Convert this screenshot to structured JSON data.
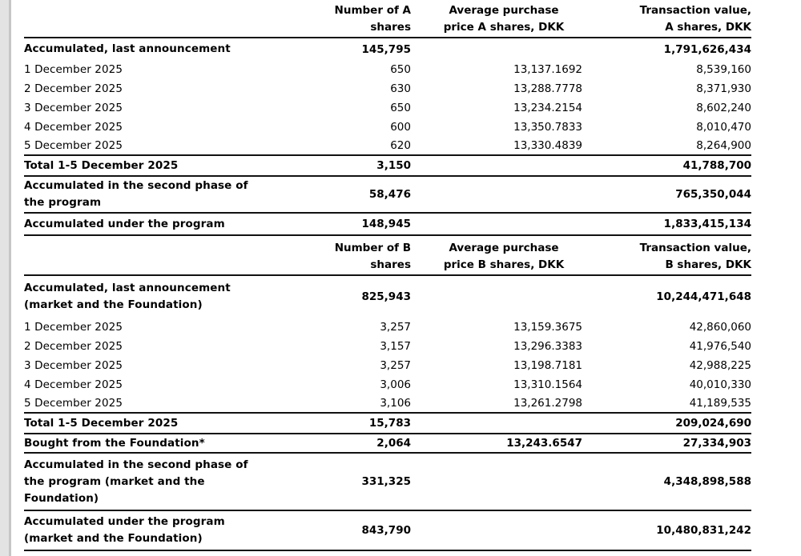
{
  "page": {
    "background": "#ffffff",
    "text_color": "#000000",
    "rule_color": "#111111",
    "margin_strip_color": "#e3e3e3",
    "margin_strip_edge_color": "#c6c6c6"
  },
  "table_a": {
    "headers": {
      "shares": "Number of A\nshares",
      "price": "Average purchase\nprice A shares, DKK",
      "value": "Transaction value,\nA shares, DKK"
    },
    "rows": [
      {
        "label": "Accumulated, last announcement",
        "shares": "145,795",
        "price": "",
        "value": "1,791,626,434"
      },
      {
        "label": "1 December 2025",
        "shares": "650",
        "price": "13,137.1692",
        "value": "8,539,160"
      },
      {
        "label": "2 December 2025",
        "shares": "630",
        "price": "13,288.7778",
        "value": "8,371,930"
      },
      {
        "label": "3 December 2025",
        "shares": "650",
        "price": "13,234.2154",
        "value": "8,602,240"
      },
      {
        "label": "4 December 2025",
        "shares": "600",
        "price": "13,350.7833",
        "value": "8,010,470"
      },
      {
        "label": "5 December 2025",
        "shares": "620",
        "price": "13,330.4839",
        "value": "8,264,900"
      },
      {
        "label": "Total 1-5 December 2025",
        "shares": "3,150",
        "price": "",
        "value": "41,788,700"
      },
      {
        "label": "Accumulated in the second phase of\nthe program",
        "shares": "58,476",
        "price": "",
        "value": "765,350,044"
      },
      {
        "label": "Accumulated under the program",
        "shares": "148,945",
        "price": "",
        "value": "1,833,415,134"
      }
    ]
  },
  "table_b": {
    "headers": {
      "shares": "Number of B\nshares",
      "price": "Average purchase\nprice B shares, DKK",
      "value": "Transaction value,\nB shares, DKK"
    },
    "rows": [
      {
        "label": "Accumulated, last announcement\n(market and the Foundation)",
        "shares": "825,943",
        "price": "",
        "value": "10,244,471,648"
      },
      {
        "label": "1 December 2025",
        "shares": "3,257",
        "price": "13,159.3675",
        "value": "42,860,060"
      },
      {
        "label": "2 December 2025",
        "shares": "3,157",
        "price": "13,296.3383",
        "value": "41,976,540"
      },
      {
        "label": "3 December 2025",
        "shares": "3,257",
        "price": "13,198.7181",
        "value": "42,988,225"
      },
      {
        "label": "4 December 2025",
        "shares": "3,006",
        "price": "13,310.1564",
        "value": "40,010,330"
      },
      {
        "label": "5 December 2025",
        "shares": "3,106",
        "price": "13,261.2798",
        "value": "41,189,535"
      },
      {
        "label": "Total 1-5 December 2025",
        "shares": "15,783",
        "price": "",
        "value": "209,024,690"
      },
      {
        "label": "Bought from the Foundation*",
        "shares": "2,064",
        "price": "13,243.6547",
        "value": "27,334,903"
      },
      {
        "label": "Accumulated in the second phase of\nthe program (market and the\nFoundation)",
        "shares": "331,325",
        "price": "",
        "value": "4,348,898,588"
      },
      {
        "label": "Accumulated under the program\n(market and the Foundation)",
        "shares": "843,790",
        "price": "",
        "value": "10,480,831,242"
      }
    ]
  }
}
